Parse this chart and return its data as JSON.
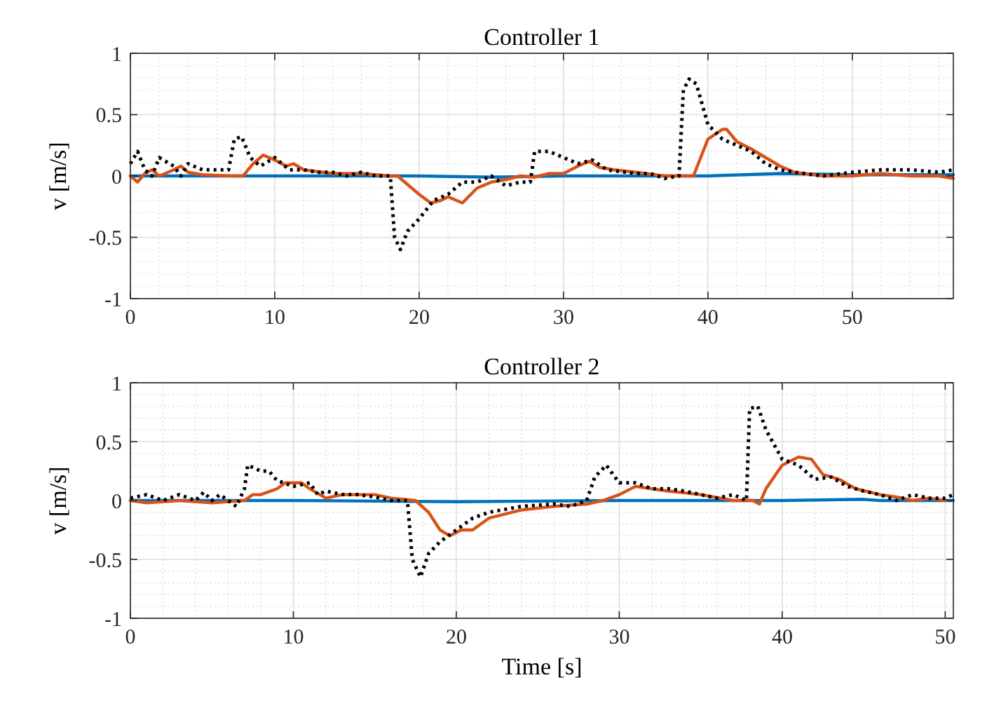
{
  "chart_data": [
    {
      "type": "line",
      "title": "Controller 1",
      "ylabel": "v [m/s]",
      "xlim": [
        0,
        57
      ],
      "xticks": [
        0,
        10,
        20,
        30,
        40,
        50
      ],
      "ylim": [
        -1,
        1
      ],
      "yticks": [
        -1,
        -0.5,
        0,
        0.5,
        1
      ],
      "grid": true,
      "series": [
        {
          "color": "#0072bd",
          "line_style": "solid",
          "x": [
            0,
            10,
            20,
            25,
            30,
            40,
            45,
            50,
            57
          ],
          "values": [
            0,
            0,
            0,
            -0.01,
            0,
            0,
            0.02,
            0.01,
            0.01
          ]
        },
        {
          "color": "#d95319",
          "line_style": "solid",
          "x": [
            0,
            0.5,
            1,
            1.5,
            2,
            3,
            3.5,
            4,
            5,
            7,
            7.8,
            8.5,
            9.2,
            10,
            10.8,
            11.3,
            12,
            14,
            16,
            18,
            18.5,
            19,
            20,
            20.8,
            21.5,
            22,
            23,
            24,
            25,
            26,
            27,
            28,
            29,
            30,
            31,
            31.8,
            32.5,
            33.5,
            35,
            37,
            38.5,
            39,
            39.5,
            40,
            41,
            41.3,
            42,
            43,
            44,
            45,
            46,
            48,
            50,
            52,
            54,
            56,
            57
          ],
          "values": [
            0,
            -0.05,
            0.02,
            0.05,
            0,
            0.05,
            0.08,
            0.03,
            0.01,
            0,
            0,
            0.1,
            0.17,
            0.13,
            0.08,
            0.1,
            0.05,
            0.02,
            0.02,
            0,
            0,
            -0.05,
            -0.15,
            -0.22,
            -0.2,
            -0.17,
            -0.22,
            -0.1,
            -0.05,
            -0.03,
            0,
            -0.01,
            0.02,
            0.02,
            0.08,
            0.12,
            0.07,
            0.05,
            0.03,
            0,
            0,
            0,
            0.15,
            0.3,
            0.38,
            0.38,
            0.28,
            0.22,
            0.15,
            0.08,
            0.03,
            0,
            0,
            0.02,
            0,
            0,
            -0.02
          ]
        },
        {
          "color": "#000000",
          "line_style": "dotted",
          "x": [
            0,
            0.5,
            1,
            1.5,
            2,
            3,
            3.5,
            4,
            5,
            6,
            6.8,
            7.2,
            7.7,
            8.3,
            9,
            10,
            11,
            12,
            13,
            14,
            15,
            16,
            17,
            18,
            18.3,
            18.7,
            19.2,
            20,
            21,
            22,
            23,
            24,
            25,
            26,
            27,
            27.7,
            28,
            29,
            30,
            31,
            32,
            33,
            35,
            36,
            37,
            38,
            38.3,
            38.7,
            39.2,
            40,
            41,
            42,
            43,
            44,
            45,
            46,
            48,
            50,
            52,
            54,
            56,
            57
          ],
          "values": [
            0.1,
            0.2,
            0.05,
            0,
            0.15,
            0.08,
            0,
            0.1,
            0.05,
            0.05,
            0.05,
            0.3,
            0.32,
            0.15,
            0.08,
            0.15,
            0.05,
            0.05,
            0.03,
            0.03,
            0,
            0.03,
            0,
            0,
            -0.5,
            -0.6,
            -0.45,
            -0.35,
            -0.2,
            -0.15,
            -0.05,
            -0.05,
            0,
            -0.08,
            -0.05,
            -0.05,
            0.2,
            0.2,
            0.15,
            0.1,
            0.13,
            0.05,
            0.02,
            0.02,
            -0.02,
            0,
            0.7,
            0.79,
            0.75,
            0.42,
            0.3,
            0.25,
            0.2,
            0.1,
            0.05,
            0.03,
            0,
            0.03,
            0.05,
            0.05,
            0.03,
            0.05
          ]
        }
      ]
    },
    {
      "type": "line",
      "title": "Controller 2",
      "xlabel": "Time [s]",
      "ylabel": "v [m/s]",
      "xlim": [
        0,
        50.5
      ],
      "xticks": [
        0,
        10,
        20,
        30,
        40,
        50
      ],
      "ylim": [
        -1,
        1
      ],
      "yticks": [
        -1,
        -0.5,
        0,
        0.5,
        1
      ],
      "grid": true,
      "series": [
        {
          "color": "#0072bd",
          "line_style": "solid",
          "x": [
            0,
            10,
            20,
            30,
            40,
            45,
            46,
            50.5
          ],
          "values": [
            0,
            0,
            -0.01,
            0,
            0,
            0.01,
            0,
            0
          ]
        },
        {
          "color": "#d95319",
          "line_style": "solid",
          "x": [
            0,
            1,
            3,
            5,
            7,
            7.5,
            8,
            9,
            9.5,
            10.5,
            11,
            12,
            13,
            15,
            16,
            17.5,
            18.3,
            19,
            19.6,
            20.3,
            21,
            22,
            24,
            26,
            28,
            29,
            30,
            31,
            32,
            33,
            35,
            37,
            38.2,
            38.6,
            39,
            40,
            41,
            41.8,
            42.5,
            43.5,
            44.5,
            46,
            47,
            48,
            49,
            50
          ],
          "values": [
            0,
            -0.02,
            0,
            -0.02,
            0,
            0.05,
            0.05,
            0.1,
            0.15,
            0.15,
            0.1,
            0.02,
            0.05,
            0.05,
            0.02,
            0,
            -0.1,
            -0.25,
            -0.3,
            -0.25,
            -0.25,
            -0.15,
            -0.08,
            -0.05,
            -0.03,
            0,
            0.05,
            0.12,
            0.1,
            0.08,
            0.05,
            0,
            0,
            -0.03,
            0.1,
            0.3,
            0.37,
            0.35,
            0.22,
            0.18,
            0.1,
            0.05,
            0.03,
            0,
            0.02,
            0
          ]
        },
        {
          "color": "#000000",
          "line_style": "dotted",
          "x": [
            0,
            1,
            2,
            3,
            4,
            4.5,
            5,
            5.5,
            6,
            6.5,
            7,
            7.2,
            8,
            8.5,
            9,
            10,
            11,
            11.5,
            12,
            13,
            14,
            15,
            16,
            17,
            17.3,
            17.8,
            18.3,
            19,
            20,
            21,
            22,
            24,
            26,
            27,
            28,
            28.5,
            29.2,
            30,
            31,
            32,
            33,
            34,
            35,
            36,
            37,
            37.8,
            38,
            38.5,
            39,
            40,
            41,
            42,
            43,
            44,
            45,
            46,
            47,
            48,
            49,
            50,
            50.5
          ],
          "values": [
            0.02,
            0.05,
            0,
            0.05,
            0,
            0.07,
            0,
            0.05,
            0,
            -0.05,
            0.1,
            0.3,
            0.25,
            0.25,
            0.17,
            0.12,
            0.15,
            0.05,
            0.08,
            0.05,
            0.05,
            0.03,
            0,
            0,
            -0.5,
            -0.65,
            -0.45,
            -0.35,
            -0.25,
            -0.15,
            -0.1,
            -0.05,
            -0.03,
            -0.05,
            0,
            0.2,
            0.3,
            0.15,
            0.15,
            0.1,
            0.1,
            0.08,
            0.05,
            0.02,
            0.05,
            0,
            0.78,
            0.8,
            0.6,
            0.35,
            0.3,
            0.18,
            0.2,
            0.12,
            0.08,
            0.05,
            0,
            0.05,
            0.02,
            0.02,
            0.05
          ]
        }
      ]
    }
  ]
}
